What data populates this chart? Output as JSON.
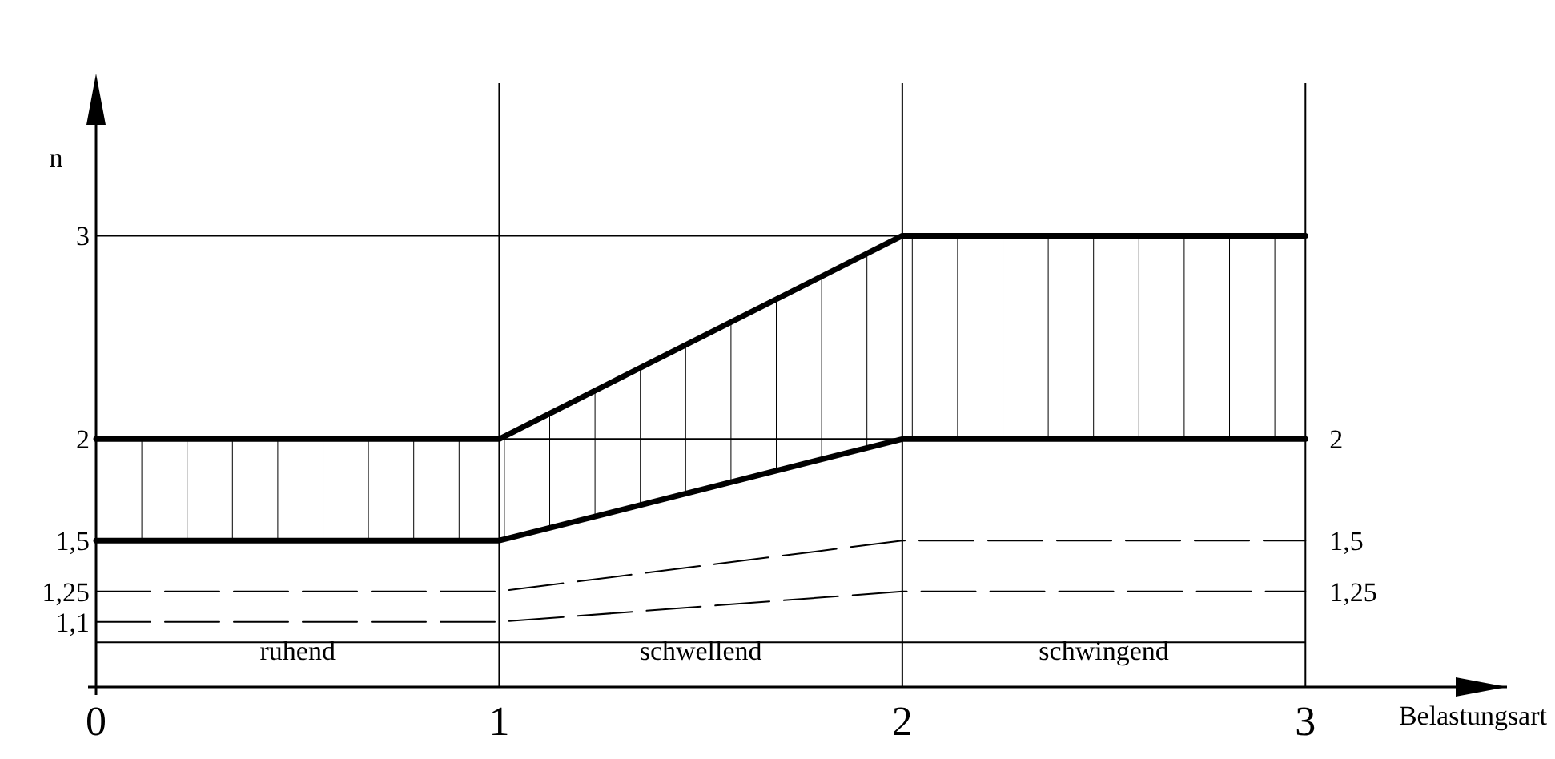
{
  "chart_data": {
    "type": "line",
    "ylabel": "n",
    "xlabel": "Belastungsart",
    "x": [
      0,
      1,
      2,
      3
    ],
    "xlim": [
      0,
      3.5
    ],
    "xticks": [
      0,
      1,
      2,
      3
    ],
    "annotations": [
      "ruhend",
      "schwellend",
      "schwingend"
    ],
    "ylim": [
      0.78,
      3.75
    ],
    "yticks": [
      {
        "value": 1.1,
        "label": "1,1"
      },
      {
        "value": 1.25,
        "label": "1,25"
      },
      {
        "value": 1.5,
        "label": "1,5"
      },
      2,
      3
    ],
    "y2lim": [
      0.78,
      3.75
    ],
    "y2ticks": [
      {
        "value": 1.25,
        "label": "1,25"
      },
      {
        "value": 1.5,
        "label": "1,5"
      },
      2
    ],
    "grid": "x",
    "marker": "none",
    "ref_lines": [
      {
        "axis": "y",
        "value": 1
      },
      {
        "axis": "y",
        "value": 2
      },
      {
        "axis": "y",
        "value": 3
      }
    ],
    "series": [
      {
        "color": "#000000",
        "values": [
          2,
          2,
          3,
          3
        ],
        "lower": [
          1.5,
          1.5,
          2,
          2
        ],
        "upper": [
          2,
          2,
          3,
          3
        ],
        "line_style": "solid"
      },
      {
        "color": "#000000",
        "values": [
          1.5,
          1.5,
          2,
          2
        ],
        "line_style": "solid"
      },
      {
        "color": "#000000",
        "values": [
          1.25,
          1.25,
          1.5,
          1.5
        ],
        "line_style": "dashed"
      },
      {
        "color": "#000000",
        "values": [
          1.1,
          1.1,
          1.25,
          1.25
        ],
        "line_style": "dashed"
      }
    ]
  }
}
